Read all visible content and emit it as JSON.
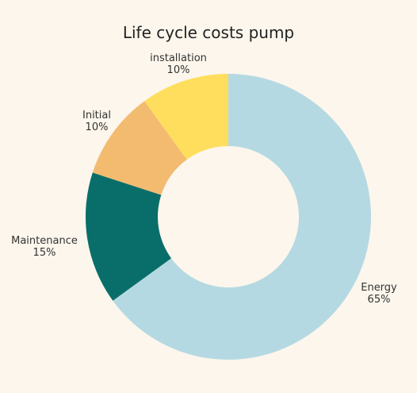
{
  "chart_data": {
    "type": "pie",
    "variant": "donut",
    "title": "Life cycle costs pump",
    "legend": "none",
    "slices": [
      {
        "label": "Energy",
        "value": 65,
        "value_label": "65%",
        "color": "#b5d9e2"
      },
      {
        "label": "Maintenance",
        "value": 15,
        "value_label": "15%",
        "color": "#096e69"
      },
      {
        "label": "Initial",
        "value": 10,
        "value_label": "10%",
        "color": "#f2bb70"
      },
      {
        "label": "installation",
        "value": 10,
        "value_label": "10%",
        "color": "#fede5c"
      }
    ]
  }
}
